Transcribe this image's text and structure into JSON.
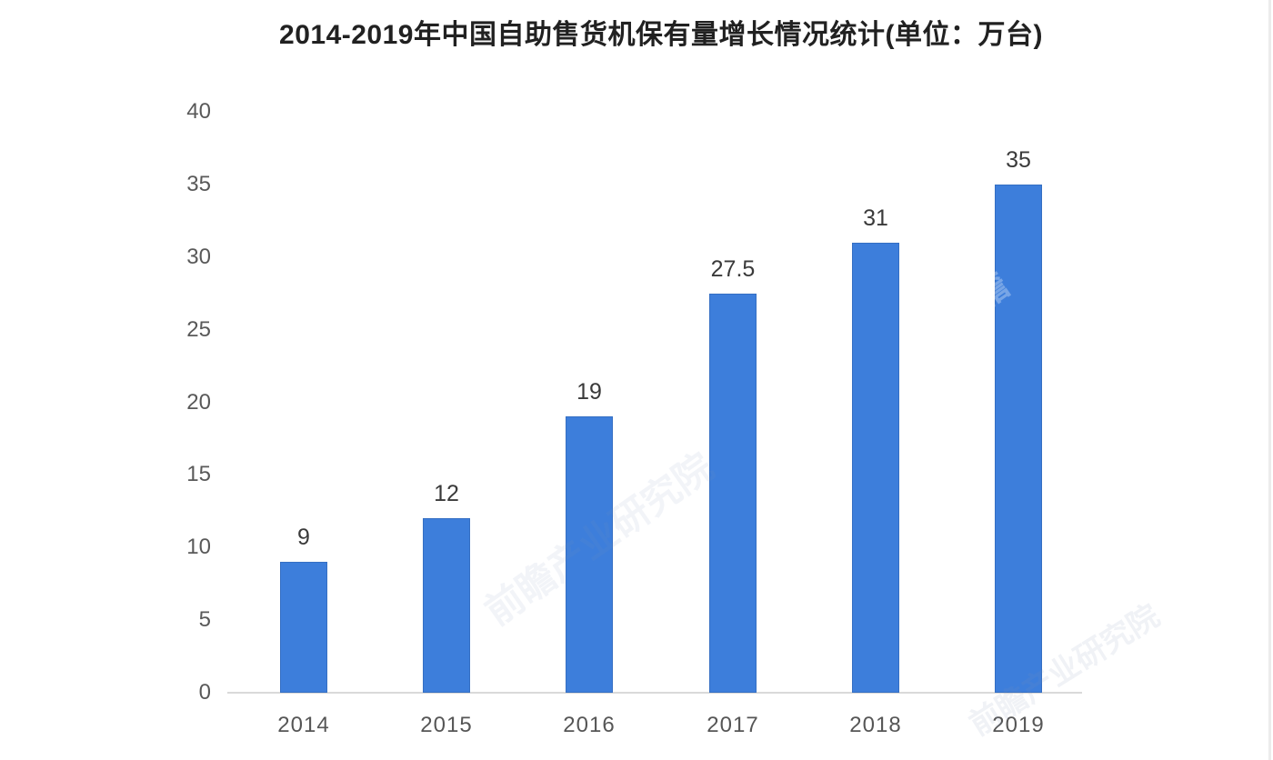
{
  "chart_data": {
    "type": "bar",
    "title": "2014-2019年中国自助售货机保有量增长情况统计(单位：万台)",
    "categories": [
      "2014",
      "2015",
      "2016",
      "2017",
      "2018",
      "2019"
    ],
    "values": [
      9,
      12,
      19,
      27.5,
      31,
      35
    ],
    "value_labels": [
      "9",
      "12",
      "19",
      "27.5",
      "31",
      "35"
    ],
    "y_ticks": [
      0,
      5,
      10,
      15,
      20,
      25,
      30,
      35,
      40
    ],
    "ylim": [
      0,
      40
    ],
    "xlabel": "",
    "ylabel": "",
    "unit": "万台",
    "bar_color": "#3d7edb",
    "grid": false,
    "legend_position": "none"
  },
  "watermark": {
    "text": "前瞻产业研究院",
    "short": "前瞻"
  }
}
